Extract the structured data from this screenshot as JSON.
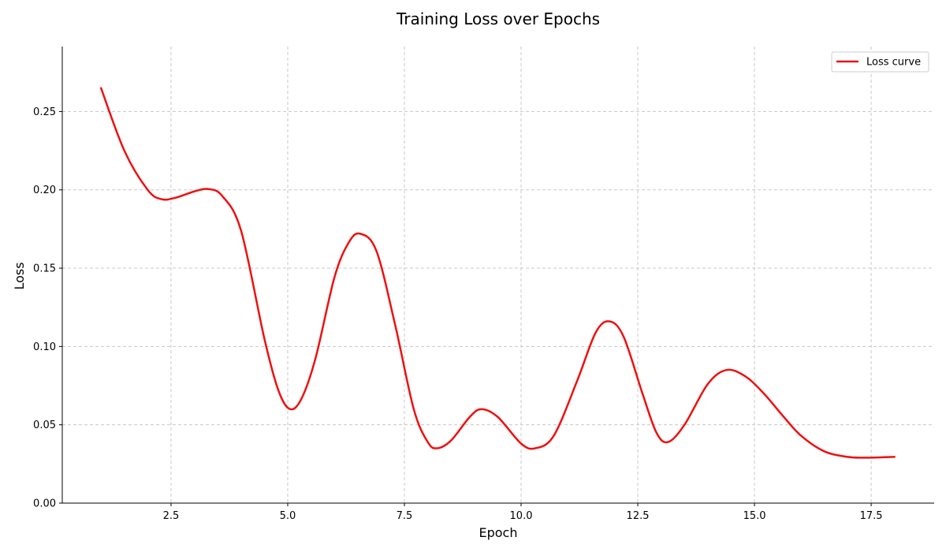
{
  "chart_data": {
    "type": "line",
    "title": "Training Loss over Epochs",
    "xlabel": "Epoch",
    "ylabel": "Loss",
    "xlim": [
      0.17,
      18.85
    ],
    "ylim": [
      0,
      0.2915
    ],
    "xticks": [
      2.5,
      5.0,
      7.5,
      10.0,
      12.5,
      15.0,
      17.5
    ],
    "xtick_labels": [
      "2.5",
      "5.0",
      "7.5",
      "10.0",
      "12.5",
      "15.0",
      "17.5"
    ],
    "yticks": [
      0.0,
      0.05,
      0.1,
      0.15,
      0.2,
      0.25
    ],
    "ytick_labels": [
      "0.00",
      "0.05",
      "0.10",
      "0.15",
      "0.20",
      "0.25"
    ],
    "grid": true,
    "legend_position": "top-right",
    "series": [
      {
        "name": "Loss curve",
        "color": "#ee1111",
        "x": [
          1.0,
          1.5,
          2.0,
          2.3,
          2.6,
          3.0,
          3.3,
          3.6,
          4.0,
          4.5,
          4.8,
          5.05,
          5.3,
          5.6,
          6.0,
          6.3,
          6.55,
          6.9,
          7.3,
          7.7,
          8.0,
          8.2,
          8.5,
          8.9,
          9.15,
          9.5,
          10.0,
          10.3,
          10.7,
          11.2,
          11.6,
          11.9,
          12.2,
          12.6,
          12.9,
          13.15,
          13.5,
          14.0,
          14.4,
          14.8,
          15.2,
          15.6,
          16.0,
          16.5,
          17.0,
          17.35,
          17.7,
          18.0
        ],
        "y": [
          0.265,
          0.225,
          0.2,
          0.194,
          0.195,
          0.199,
          0.2005,
          0.196,
          0.174,
          0.105,
          0.072,
          0.06,
          0.067,
          0.093,
          0.144,
          0.166,
          0.172,
          0.161,
          0.114,
          0.06,
          0.039,
          0.035,
          0.04,
          0.055,
          0.06,
          0.055,
          0.038,
          0.035,
          0.043,
          0.078,
          0.109,
          0.116,
          0.106,
          0.07,
          0.045,
          0.039,
          0.05,
          0.076,
          0.085,
          0.081,
          0.07,
          0.056,
          0.043,
          0.033,
          0.0295,
          0.029,
          0.0292,
          0.0295
        ]
      }
    ]
  }
}
